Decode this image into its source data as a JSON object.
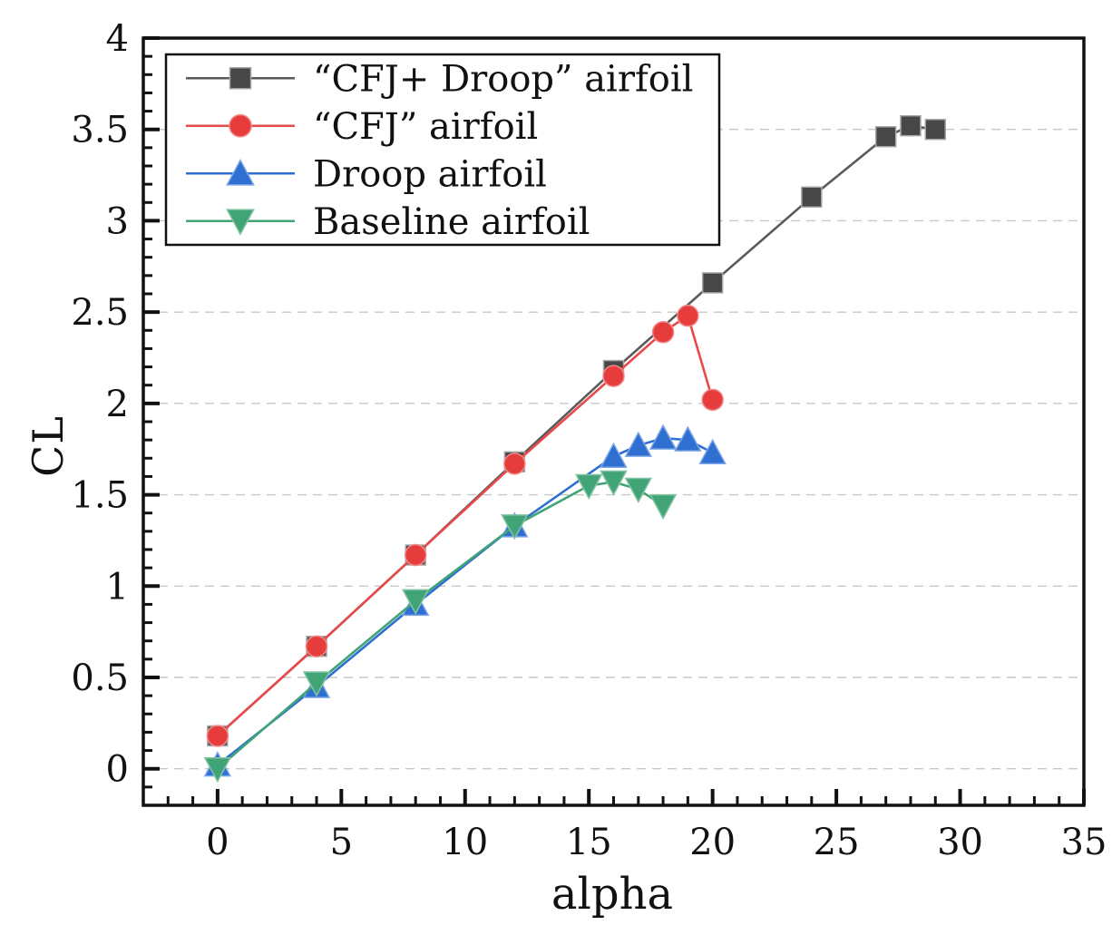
{
  "chart_data": {
    "type": "line",
    "title": "",
    "xlabel": "alpha",
    "ylabel": "CL",
    "xlim": [
      -3,
      35
    ],
    "ylim": [
      -0.2,
      4.0
    ],
    "x_major_ticks": [
      0,
      5,
      10,
      15,
      20,
      25,
      30,
      35
    ],
    "x_minor_step": 1,
    "y_major_ticks": [
      0,
      0.5,
      1,
      1.5,
      2,
      2.5,
      3,
      3.5,
      4
    ],
    "y_minor_step": 0.1,
    "grid": "horizontal-dashed",
    "grid_color": "#c8c8c8",
    "legend_position": "top-left",
    "series": [
      {
        "name": "“CFJ+ Droop” airfoil",
        "marker": "square",
        "color": "#474747",
        "line_color": "#5a5a5a",
        "edge_color": "#a8a8a8",
        "points": [
          [
            0,
            0.18
          ],
          [
            4,
            0.67
          ],
          [
            8,
            1.17
          ],
          [
            12,
            1.68
          ],
          [
            16,
            2.18
          ],
          [
            20,
            2.66
          ],
          [
            24,
            3.13
          ],
          [
            27,
            3.46
          ],
          [
            28,
            3.52
          ],
          [
            29,
            3.5
          ]
        ]
      },
      {
        "name": "“CFJ” airfoil",
        "marker": "circle",
        "color": "#e73c3c",
        "line_color": "#e84a4a",
        "edge_color": "#ef8a8a",
        "points": [
          [
            0,
            0.18
          ],
          [
            4,
            0.67
          ],
          [
            8,
            1.17
          ],
          [
            12,
            1.67
          ],
          [
            16,
            2.15
          ],
          [
            18,
            2.39
          ],
          [
            19,
            2.48
          ],
          [
            20,
            2.02
          ]
        ]
      },
      {
        "name": "Droop airfoil",
        "marker": "triangle-up",
        "color": "#2f6fd2",
        "line_color": "#2f6fd2",
        "edge_color": "#7da6e6",
        "points": [
          [
            0,
            0.02
          ],
          [
            4,
            0.45
          ],
          [
            8,
            0.9
          ],
          [
            12,
            1.33
          ],
          [
            16,
            1.71
          ],
          [
            17,
            1.77
          ],
          [
            18,
            1.81
          ],
          [
            19,
            1.8
          ],
          [
            20,
            1.73
          ]
        ]
      },
      {
        "name": "Baseline airfoil",
        "marker": "triangle-down",
        "color": "#40a476",
        "line_color": "#40a476",
        "edge_color": "#84c4a4",
        "points": [
          [
            0,
            0.0
          ],
          [
            4,
            0.47
          ],
          [
            8,
            0.92
          ],
          [
            12,
            1.33
          ],
          [
            15,
            1.55
          ],
          [
            16,
            1.57
          ],
          [
            17,
            1.53
          ],
          [
            18,
            1.44
          ]
        ]
      }
    ]
  }
}
